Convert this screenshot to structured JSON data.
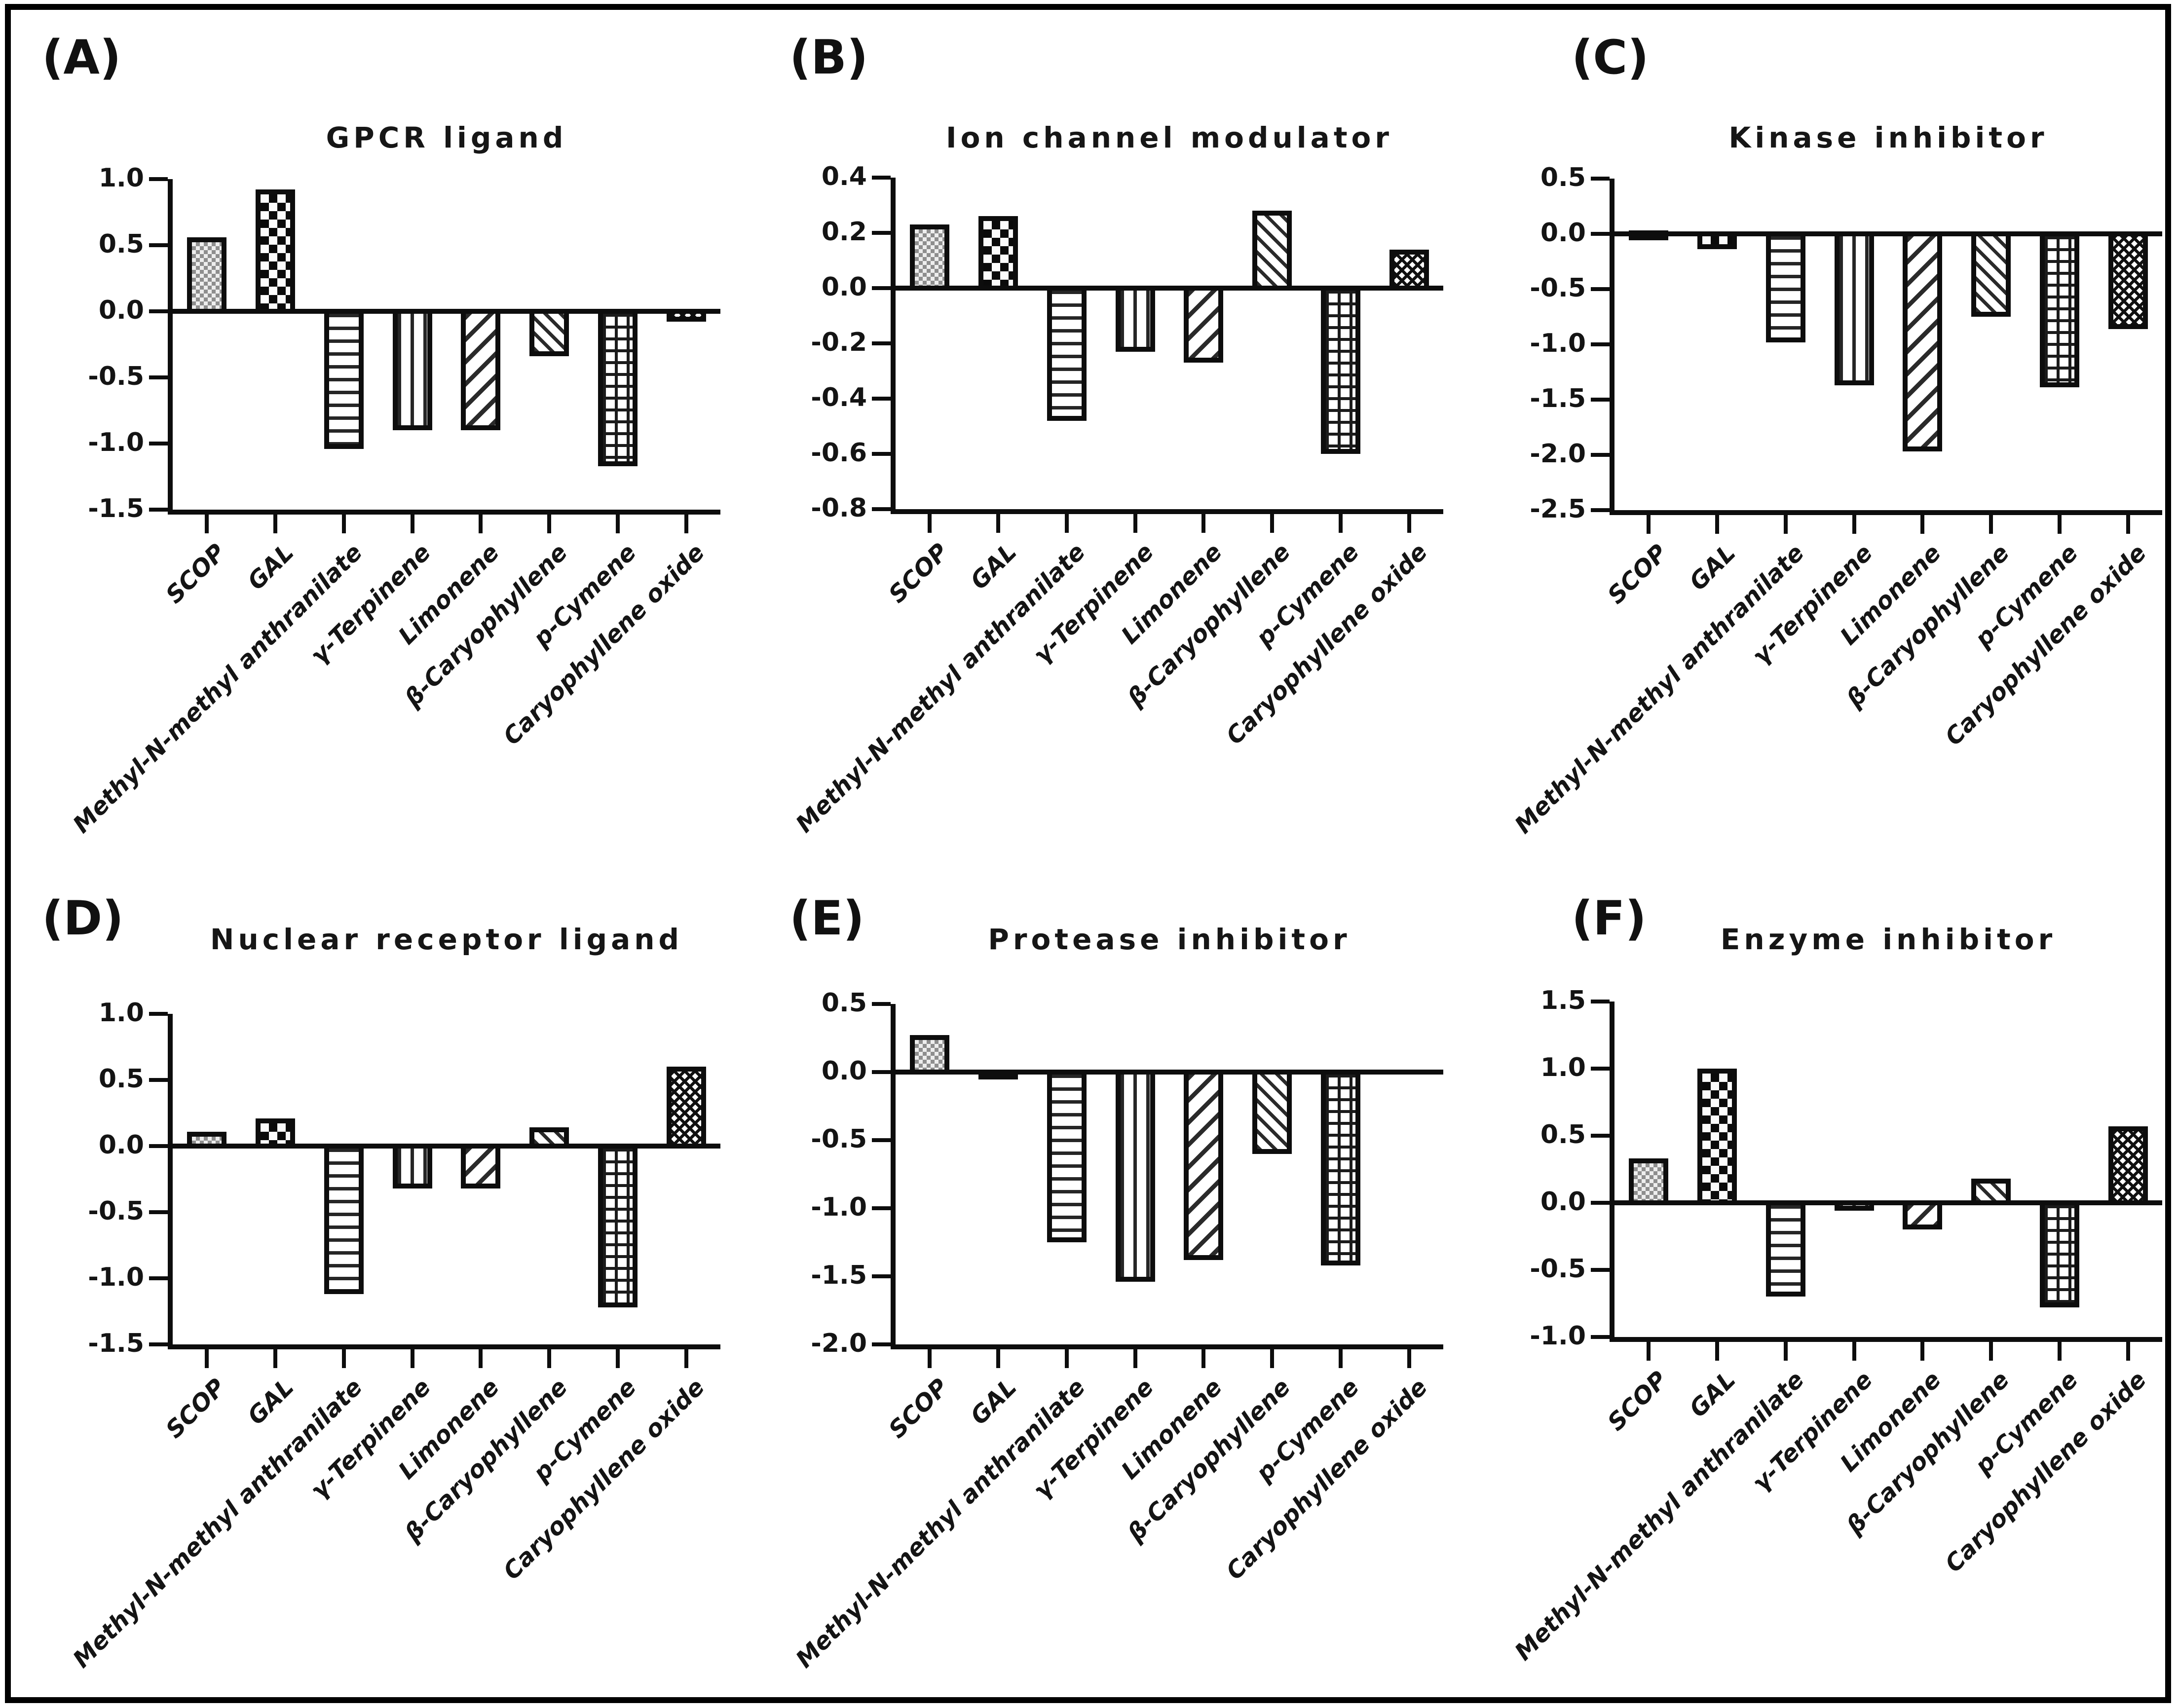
{
  "figure": {
    "background": "#ffffff",
    "ink_color": "#0d0d0d",
    "gray_fill": "#8e8e8e",
    "border_color": "#000000",
    "categories": [
      "SCOP",
      "GAL",
      "Methyl-N-methyl anthranilate",
      "γ-Terpinene",
      "Limonene",
      "β-Caryophyllene",
      "p-Cymene",
      "Caryophyllene oxide"
    ],
    "bar_patterns": [
      "fine-gray-checker",
      "coarse-checker",
      "horizontal-lines",
      "vertical-lines",
      "diagonal-hatch-forward",
      "diagonal-hatch-back",
      "grid-crosshatch",
      "fine-diagonal-checker"
    ]
  },
  "chart_data": [
    {
      "panel_label": "(A)",
      "type": "bar",
      "title": "GPCR ligand",
      "ylim": [
        -1.5,
        1.0
      ],
      "grid": false,
      "legend": "none",
      "yticks": [
        "1.0",
        "0.5",
        "0.0",
        "-0.5",
        "-1.0",
        "-1.5"
      ],
      "values": [
        0.56,
        0.92,
        -1.04,
        -0.9,
        -0.9,
        -0.34,
        -1.17,
        -0.08
      ]
    },
    {
      "panel_label": "(B)",
      "type": "bar",
      "title": "Ion channel modulator",
      "ylim": [
        -0.8,
        0.4
      ],
      "grid": false,
      "legend": "none",
      "yticks": [
        "0.4",
        "0.2",
        "0.0",
        "-0.2",
        "-0.4",
        "-0.6",
        "-0.8"
      ],
      "values": [
        0.23,
        0.26,
        -0.48,
        -0.23,
        -0.27,
        0.28,
        -0.6,
        0.14
      ]
    },
    {
      "panel_label": "(C)",
      "type": "bar",
      "title": "Kinase inhibitor",
      "ylim": [
        -2.5,
        0.5
      ],
      "grid": false,
      "legend": "none",
      "yticks": [
        "0.5",
        "0.0",
        "-0.5",
        "-1.0",
        "-1.5",
        "-2.0",
        "-2.5"
      ],
      "values": [
        0.03,
        -0.14,
        -0.98,
        -1.37,
        -1.97,
        -0.75,
        -1.39,
        -0.86
      ]
    },
    {
      "panel_label": "(D)",
      "type": "bar",
      "title": "Nuclear receptor ligand",
      "ylim": [
        -1.5,
        1.0
      ],
      "grid": false,
      "legend": "none",
      "yticks": [
        "1.0",
        "0.5",
        "0.0",
        "-0.5",
        "-1.0",
        "-1.5"
      ],
      "values": [
        0.11,
        0.21,
        -1.12,
        -0.32,
        -0.32,
        0.14,
        -1.22,
        0.6
      ]
    },
    {
      "panel_label": "(E)",
      "type": "bar",
      "title": "Protease inhibitor",
      "ylim": [
        -2.0,
        0.5
      ],
      "grid": false,
      "legend": "none",
      "yticks": [
        "0.5",
        "0.0",
        "-0.5",
        "-1.0",
        "-1.5",
        "-2.0"
      ],
      "values": [
        0.27,
        -0.02,
        -1.25,
        -1.54,
        -1.38,
        -0.6,
        -1.42,
        0
      ]
    },
    {
      "panel_label": "(F)",
      "type": "bar",
      "title": "Enzyme inhibitor",
      "ylim": [
        -1.0,
        1.5
      ],
      "grid": false,
      "legend": "none",
      "yticks": [
        "1.5",
        "1.0",
        "0.5",
        "0.0",
        "-0.5",
        "-1.0"
      ],
      "values": [
        0.33,
        1.0,
        -0.7,
        -0.06,
        -0.2,
        0.18,
        -0.78,
        0.57
      ]
    }
  ]
}
